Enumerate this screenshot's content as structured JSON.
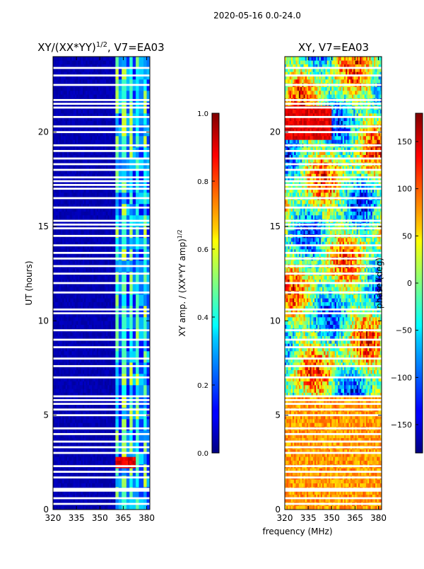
{
  "suptitle": "2020-05-16 0.0-24.0",
  "colors": {
    "frame": "#000000",
    "background": "#ffffff"
  },
  "chart_data": [
    {
      "type": "heatmap",
      "title": "XY/(XX*YY)",
      "title_sup": "1/2",
      "title_suffix": ", V7=EA03",
      "xlabel": "",
      "ylabel": "UT (hours)",
      "x_range": [
        320,
        382
      ],
      "y_range": [
        0,
        24
      ],
      "x_ticks": [
        320,
        335,
        350,
        365,
        380
      ],
      "y_ticks": [
        0,
        5,
        10,
        15,
        20
      ],
      "signal_band_mhz": [
        360,
        380
      ],
      "colorbar": {
        "label": "XY amp. / (XX*YY amp)",
        "label_sup": "1/2",
        "range": [
          0.0,
          1.0
        ],
        "ticks": [
          "0.0",
          "0.2",
          "0.4",
          "0.6",
          "0.8",
          "1.0"
        ],
        "colormap": "jet"
      }
    },
    {
      "type": "heatmap",
      "title": "XY, V7=EA03",
      "xlabel": "frequency (MHz)",
      "ylabel": "",
      "x_range": [
        320,
        382
      ],
      "y_range": [
        0,
        24
      ],
      "x_ticks": [
        320,
        335,
        350,
        365,
        380
      ],
      "y_ticks": [
        0,
        5,
        10,
        15,
        20
      ],
      "colorbar": {
        "label": "phase (deg)",
        "range": [
          -180,
          180
        ],
        "ticks": [
          "150",
          "100",
          "50",
          "0",
          "−50",
          "−100",
          "−150"
        ],
        "tick_values": [
          150,
          100,
          50,
          0,
          -50,
          -100,
          -150
        ],
        "colormap": "jet"
      }
    }
  ],
  "flagged_hours": [
    0.3,
    0.6,
    1.0,
    1.1,
    1.7,
    2.0,
    2.3,
    3.0,
    3.3,
    3.6,
    4.0,
    4.3,
    5.0,
    5.3,
    5.6,
    5.8,
    6.0,
    7.0,
    7.6,
    8.0,
    8.6,
    9.0,
    9.5,
    10.4,
    10.6,
    11.5,
    12.0,
    12.5,
    12.9,
    13.3,
    13.6,
    14.0,
    14.5,
    14.9,
    15.1,
    15.3,
    16.0,
    16.5,
    17.0,
    17.2,
    17.4,
    17.6,
    18.0,
    18.3,
    18.6,
    19.0,
    19.3,
    20.0,
    20.3,
    20.8,
    21.3,
    21.5,
    21.7,
    22.5,
    23.0,
    23.4
  ]
}
